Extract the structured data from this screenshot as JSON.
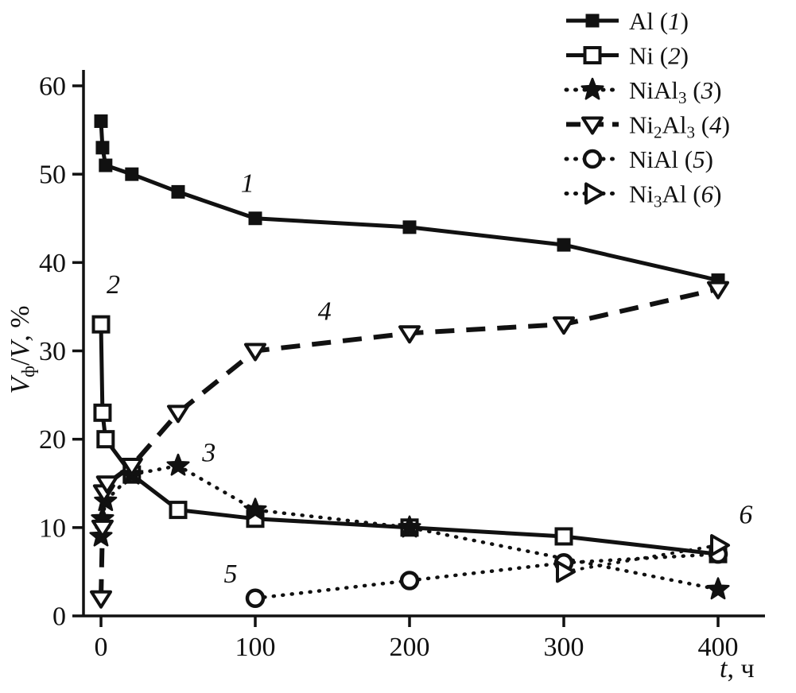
{
  "figure": {
    "background": "#ffffff",
    "ink": "#111111"
  },
  "chart_data": {
    "type": "line",
    "title": "",
    "xlabel": "t, ч",
    "ylabel": "Vф/V, %",
    "xlabel_parts": [
      {
        "t": "t",
        "i": true
      },
      {
        "t": ", ч"
      }
    ],
    "ylabel_parts": [
      {
        "t": "V",
        "i": true
      },
      {
        "t": "ф",
        "sub": true
      },
      {
        "t": "/"
      },
      {
        "t": "V",
        "i": true
      },
      {
        "t": ", %"
      }
    ],
    "xlim": [
      0,
      400
    ],
    "ylim": [
      0,
      60
    ],
    "xticks": [
      0,
      100,
      200,
      300,
      400
    ],
    "yticks": [
      0,
      10,
      20,
      30,
      40,
      50,
      60
    ],
    "grid": false,
    "legend_position": "top-right",
    "series": [
      {
        "name": "Al (1)",
        "num": "1",
        "name_parts": [
          {
            "t": "Al"
          }
        ],
        "marker": "square-filled",
        "line": "solid",
        "width": 5,
        "x": [
          0,
          1,
          3,
          20,
          50,
          100,
          200,
          300,
          400
        ],
        "y": [
          56,
          53,
          51,
          50,
          48,
          45,
          44,
          42,
          38
        ]
      },
      {
        "name": "Ni (2)",
        "num": "2",
        "name_parts": [
          {
            "t": "Ni"
          }
        ],
        "marker": "square-open",
        "line": "solid",
        "width": 5,
        "x": [
          0,
          1,
          3,
          20,
          50,
          100,
          200,
          300,
          400
        ],
        "y": [
          33,
          23,
          20,
          16,
          12,
          11,
          10,
          9,
          7
        ]
      },
      {
        "name": "NiAl3 (3)",
        "num": "3",
        "name_parts": [
          {
            "t": "NiAl"
          },
          {
            "t": "3",
            "sub": true
          }
        ],
        "marker": "star-filled",
        "line": "dotted",
        "width": 4.5,
        "x": [
          0,
          1,
          3,
          20,
          50,
          100,
          200,
          400
        ],
        "y": [
          9,
          11,
          13,
          16,
          17,
          12,
          10,
          3
        ]
      },
      {
        "name": "Ni2Al3 (4)",
        "num": "4",
        "name_parts": [
          {
            "t": "Ni"
          },
          {
            "t": "2",
            "sub": true
          },
          {
            "t": "Al"
          },
          {
            "t": "3",
            "sub": true
          }
        ],
        "marker": "triangle-down-open",
        "line": "dashed",
        "width": 6,
        "x": [
          0,
          1,
          2,
          4,
          20,
          50,
          100,
          200,
          300,
          400
        ],
        "y": [
          2,
          10,
          14,
          15,
          17,
          23,
          30,
          32,
          33,
          37
        ]
      },
      {
        "name": "NiAl (5)",
        "num": "5",
        "name_parts": [
          {
            "t": "NiAl"
          }
        ],
        "marker": "circle-open",
        "line": "dotted",
        "width": 4.5,
        "x": [
          100,
          200,
          300,
          400
        ],
        "y": [
          2,
          4,
          6,
          7
        ]
      },
      {
        "name": "Ni3Al (6)",
        "num": "6",
        "name_parts": [
          {
            "t": "Ni"
          },
          {
            "t": "3",
            "sub": true
          },
          {
            "t": "Al"
          }
        ],
        "marker": "triangle-right-open",
        "line": "dotted",
        "width": 4,
        "x": [
          300,
          400
        ],
        "y": [
          5,
          8
        ]
      }
    ],
    "annotations": [
      {
        "text": "1",
        "x": 95,
        "y": 48
      },
      {
        "text": "2",
        "x": 8,
        "y": 36.5
      },
      {
        "text": "3",
        "x": 70,
        "y": 17.5
      },
      {
        "text": "4",
        "x": 145,
        "y": 33.5
      },
      {
        "text": "5",
        "x": 84,
        "y": 3.8
      },
      {
        "text": "6",
        "x": 418,
        "y": 10.5
      }
    ]
  }
}
